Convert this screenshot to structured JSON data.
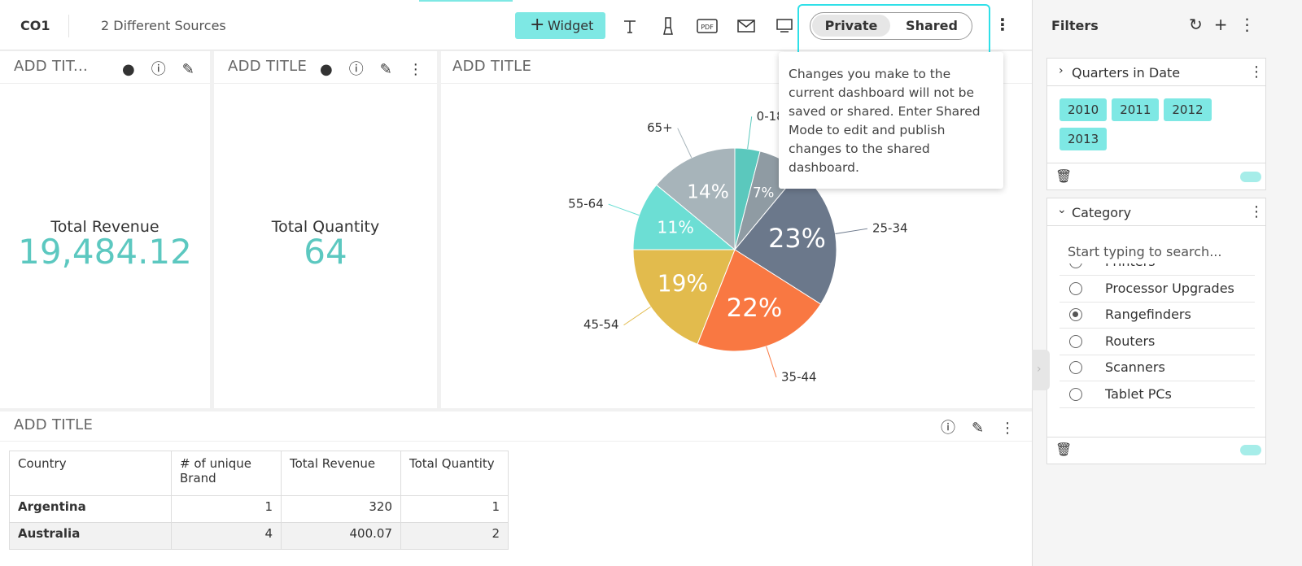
{
  "header": {
    "title": "CO1",
    "sources": "2 Different Sources",
    "widget_button": "Widget",
    "toggle": [
      "Private",
      "Shared"
    ]
  },
  "tooltip": "Changes you make to the current dashboard will not be saved or shared. Enter Shared Mode to edit and publish changes to the shared dashboard.",
  "widgets": [
    {
      "title": "ADD TIT...",
      "label": "Total Revenue",
      "value": "19,484.12"
    },
    {
      "title": "ADD TITLE",
      "label": "Total Quantity",
      "value": "64"
    },
    {
      "title": "ADD TITLE"
    },
    {
      "title": "ADD TITLE"
    }
  ],
  "chart_data": {
    "type": "pie",
    "categories": [
      "0-18",
      null,
      "25-34",
      "35-44",
      "45-54",
      "55-64",
      "65+"
    ],
    "values": [
      4,
      7,
      23,
      22,
      19,
      11,
      14
    ],
    "value_labels": [
      null,
      "7%",
      "23%",
      "22%",
      "19%",
      "11%",
      "14%"
    ],
    "colors": [
      "#5bc8bd",
      "#8f9ba3",
      "#6b788b",
      "#f97842",
      "#e2bb4d",
      "#6cded4",
      "#a7b4ba"
    ]
  },
  "table": {
    "columns": [
      "Country",
      "# of unique Brand",
      "Total Revenue",
      "Total Quantity"
    ],
    "rows": [
      [
        "Argentina",
        1,
        320,
        1
      ],
      [
        "Australia",
        4,
        400.07,
        2
      ]
    ]
  },
  "filters": {
    "title": "Filters",
    "groups": [
      {
        "name": "Quarters in Date",
        "chips": [
          "2010",
          "2011",
          "2012",
          "2013"
        ]
      },
      {
        "name": "Category",
        "search_placeholder": "Start typing to search...",
        "options": [
          "Printers",
          "Processor Upgrades",
          "Rangefinders",
          "Routers",
          "Scanners",
          "Tablet PCs"
        ],
        "selected": 2
      }
    ]
  }
}
